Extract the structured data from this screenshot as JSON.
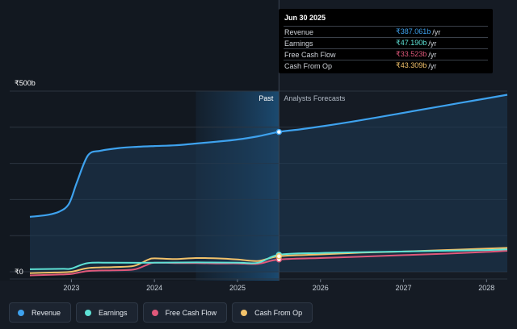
{
  "tooltip": {
    "date": "Jun 30 2025",
    "rows": [
      {
        "label": "Revenue",
        "value": "₹387.061b",
        "unit": "/yr",
        "color": "#3ea2ee"
      },
      {
        "label": "Earnings",
        "value": "₹47.190b",
        "unit": "/yr",
        "color": "#5ee2d6"
      },
      {
        "label": "Free Cash Flow",
        "value": "₹33.523b",
        "unit": "/yr",
        "color": "#e0587a"
      },
      {
        "label": "Cash From Op",
        "value": "₹43.309b",
        "unit": "/yr",
        "color": "#f2c26b"
      }
    ]
  },
  "legend": [
    {
      "label": "Revenue",
      "color": "#3ea2ee"
    },
    {
      "label": "Earnings",
      "color": "#5ee2d6"
    },
    {
      "label": "Free Cash Flow",
      "color": "#e0587a"
    },
    {
      "label": "Cash From Op",
      "color": "#f2c26b"
    }
  ],
  "chart_data": {
    "type": "line",
    "xlim": [
      2022.5,
      2028.25
    ],
    "ylim": [
      0,
      500
    ],
    "y_unit": "₹b",
    "y_tick_labels": [
      {
        "value": 500,
        "label": "₹500b"
      },
      {
        "value": 0,
        "label": "₹0"
      }
    ],
    "x_ticks": [
      2023,
      2024,
      2025,
      2026,
      2027,
      2028
    ],
    "x_tick_labels": [
      "2023",
      "2024",
      "2025",
      "2026",
      "2027",
      "2028"
    ],
    "past_label": "Past",
    "forecast_label": "Analysts Forecasts",
    "divider_x": 2025.5,
    "shaded_past_start": 2024.5,
    "gridlines": true,
    "series": [
      {
        "name": "Revenue",
        "color": "#3ea2ee",
        "points": [
          [
            2022.5,
            152
          ],
          [
            2022.7,
            157
          ],
          [
            2022.85,
            166
          ],
          [
            2022.97,
            188
          ],
          [
            2023.07,
            250
          ],
          [
            2023.2,
            322
          ],
          [
            2023.35,
            335
          ],
          [
            2023.6,
            343
          ],
          [
            2023.8,
            346
          ],
          [
            2024.0,
            348
          ],
          [
            2024.25,
            350
          ],
          [
            2024.5,
            355
          ],
          [
            2024.75,
            360
          ],
          [
            2025.0,
            366
          ],
          [
            2025.25,
            375
          ],
          [
            2025.5,
            387
          ],
          [
            2025.75,
            394
          ],
          [
            2026.0,
            402
          ],
          [
            2026.5,
            420
          ],
          [
            2027.0,
            440
          ],
          [
            2027.5,
            460
          ],
          [
            2028.0,
            480
          ],
          [
            2028.25,
            490
          ]
        ]
      },
      {
        "name": "Earnings",
        "color": "#5ee2d6",
        "points": [
          [
            2022.5,
            7
          ],
          [
            2022.9,
            8
          ],
          [
            2023.0,
            9
          ],
          [
            2023.2,
            24
          ],
          [
            2023.5,
            25
          ],
          [
            2024.0,
            25
          ],
          [
            2024.5,
            26
          ],
          [
            2025.0,
            25
          ],
          [
            2025.25,
            25
          ],
          [
            2025.5,
            47
          ],
          [
            2026.0,
            52
          ],
          [
            2026.5,
            54
          ],
          [
            2027.0,
            56
          ],
          [
            2027.5,
            58
          ],
          [
            2028.0,
            60
          ],
          [
            2028.25,
            62
          ]
        ]
      },
      {
        "name": "Free Cash Flow",
        "color": "#e0587a",
        "points": [
          [
            2022.5,
            -10
          ],
          [
            2022.8,
            -8
          ],
          [
            2023.0,
            -6
          ],
          [
            2023.2,
            2
          ],
          [
            2023.5,
            4
          ],
          [
            2023.75,
            6
          ],
          [
            2023.9,
            18
          ],
          [
            2024.0,
            25
          ],
          [
            2024.25,
            24
          ],
          [
            2024.5,
            24
          ],
          [
            2024.75,
            23
          ],
          [
            2025.0,
            23
          ],
          [
            2025.25,
            22
          ],
          [
            2025.5,
            34
          ],
          [
            2026.0,
            38
          ],
          [
            2026.5,
            42
          ],
          [
            2027.0,
            46
          ],
          [
            2027.5,
            50
          ],
          [
            2028.0,
            55
          ],
          [
            2028.25,
            58
          ]
        ]
      },
      {
        "name": "Cash From Op",
        "color": "#f2c26b",
        "points": [
          [
            2022.5,
            -4
          ],
          [
            2022.8,
            -2
          ],
          [
            2023.0,
            0
          ],
          [
            2023.2,
            10
          ],
          [
            2023.5,
            13
          ],
          [
            2023.75,
            16
          ],
          [
            2023.92,
            33
          ],
          [
            2024.0,
            37
          ],
          [
            2024.25,
            35
          ],
          [
            2024.5,
            38
          ],
          [
            2024.75,
            37
          ],
          [
            2025.0,
            34
          ],
          [
            2025.25,
            30
          ],
          [
            2025.5,
            43
          ],
          [
            2026.0,
            48
          ],
          [
            2026.5,
            53
          ],
          [
            2027.0,
            56
          ],
          [
            2027.5,
            60
          ],
          [
            2028.0,
            64
          ],
          [
            2028.25,
            66
          ]
        ]
      }
    ]
  }
}
